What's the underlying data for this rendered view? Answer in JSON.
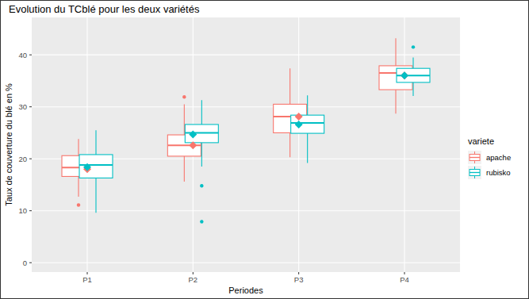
{
  "chart_data": {
    "type": "boxplot",
    "title": "Evolution du TCblé pour les deux variétés",
    "x_label": "Periodes",
    "y_label": "Taux de couverture du blé en %",
    "legend_title": "variete",
    "categories": [
      "P1",
      "P2",
      "P3",
      "P4"
    ],
    "series": [
      {
        "name": "apache",
        "color": "#F8766D",
        "whisker_low": [
          12.7,
          15.6,
          20.3,
          28.7
        ],
        "q1": [
          16.6,
          20.5,
          25.0,
          33.3
        ],
        "median": [
          18.3,
          22.6,
          28.1,
          36.5
        ],
        "q3": [
          20.6,
          24.6,
          30.5,
          37.9
        ],
        "whisker_high": [
          23.8,
          30.5,
          37.4,
          43.2
        ],
        "outliers": [
          [
            11.1
          ],
          [
            31.9
          ],
          [],
          []
        ],
        "means": [
          18.0,
          22.6,
          28.1,
          36.0
        ]
      },
      {
        "name": "rubisko",
        "color": "#00BFC4",
        "whisker_low": [
          9.6,
          18.5,
          19.2,
          32.1
        ],
        "q1": [
          16.3,
          23.1,
          24.9,
          34.7
        ],
        "median": [
          18.8,
          25.0,
          26.9,
          36.0
        ],
        "q3": [
          20.8,
          26.6,
          28.4,
          37.4
        ],
        "whisker_high": [
          25.5,
          31.3,
          32.2,
          39.5
        ],
        "outliers": [
          [],
          [
            14.8,
            7.9
          ],
          [],
          [
            41.5
          ]
        ],
        "means": [
          18.4,
          24.7,
          26.6,
          36.0
        ]
      }
    ],
    "ylim": [
      -1.8,
      47.2
    ],
    "yticks": [
      0,
      10,
      20,
      30,
      40
    ],
    "grid": true,
    "legend": "right"
  }
}
